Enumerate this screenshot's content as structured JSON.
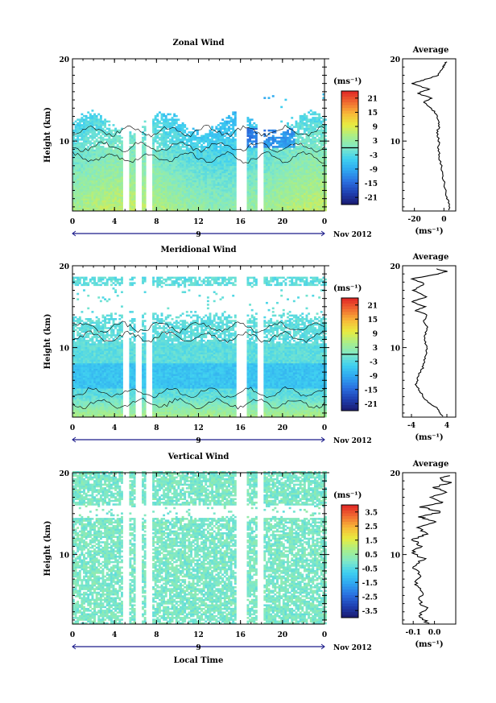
{
  "figure": {
    "date_label": "Nov 2012",
    "day_label": "9",
    "xlabel": "Local Time",
    "ylabel": "Height (km)",
    "colorbar_unit": "(ms⁻¹)",
    "average_xlabel": "(ms⁻¹)",
    "average_title": "Average"
  },
  "chart_data": [
    {
      "type": "heatmap",
      "title": "Zonal Wind",
      "xlabel": "Local Time",
      "ylabel": "Height (km)",
      "x_ticks": [
        "0",
        "4",
        "8",
        "12",
        "16",
        "20",
        "0"
      ],
      "xlim": [
        0,
        24
      ],
      "y_ticks": [
        "10",
        "20"
      ],
      "ylim": [
        1.5,
        20
      ],
      "colorbar_ticks": [
        "21",
        "15",
        "9",
        "3",
        "-3",
        "-9",
        "-15",
        "-21"
      ],
      "colorbar_range": [
        -24,
        24
      ],
      "average": {
        "title": "Average",
        "x_ticks": [
          "-20",
          "0"
        ],
        "xlim": [
          -28,
          8
        ],
        "y_ticks": [
          "10",
          "20"
        ],
        "ylim": [
          1.5,
          20
        ],
        "profile": [
          [
            4,
            1.6
          ],
          [
            3,
            2.5
          ],
          [
            1.5,
            3.5
          ],
          [
            0,
            5
          ],
          [
            -1.5,
            6.5
          ],
          [
            -3,
            8
          ],
          [
            -4,
            9
          ],
          [
            -3.5,
            10
          ],
          [
            -4.5,
            11
          ],
          [
            -3,
            12
          ],
          [
            -4,
            12.8
          ],
          [
            -6,
            13.5
          ],
          [
            -10,
            14.2
          ],
          [
            -14,
            14.8
          ],
          [
            -8,
            15.2
          ],
          [
            -18,
            15.8
          ],
          [
            -10,
            16.3
          ],
          [
            -22,
            17
          ],
          [
            -14,
            17.4
          ],
          [
            -4,
            18
          ],
          [
            -2,
            18.6
          ],
          [
            0,
            19.2
          ],
          [
            2,
            19.7
          ]
        ]
      }
    },
    {
      "type": "heatmap",
      "title": "Meridional Wind",
      "xlabel": "Local Time",
      "ylabel": "Height (km)",
      "x_ticks": [
        "0",
        "4",
        "8",
        "12",
        "16",
        "20",
        "0"
      ],
      "xlim": [
        0,
        24
      ],
      "y_ticks": [
        "10",
        "20"
      ],
      "ylim": [
        1.5,
        20
      ],
      "colorbar_ticks": [
        "21",
        "15",
        "9",
        "3",
        "-3",
        "-9",
        "-15",
        "-21"
      ],
      "colorbar_range": [
        -24,
        24
      ],
      "average": {
        "title": "Average",
        "x_ticks": [
          "-4",
          "4"
        ],
        "xlim": [
          -6,
          6
        ],
        "y_ticks": [
          "10",
          "20"
        ],
        "ylim": [
          1.5,
          20
        ],
        "profile": [
          [
            3,
            1.6
          ],
          [
            2,
            2.5
          ],
          [
            -0.5,
            3.5
          ],
          [
            -2,
            4.5
          ],
          [
            -3,
            5.5
          ],
          [
            -2.5,
            6.5
          ],
          [
            -1.5,
            7.5
          ],
          [
            -1,
            8.5
          ],
          [
            -0.5,
            9.5
          ],
          [
            -0.8,
            10.5
          ],
          [
            -1,
            11.5
          ],
          [
            -0.3,
            12.5
          ],
          [
            -1.2,
            13.3
          ],
          [
            -0.5,
            14
          ],
          [
            -3,
            14.5
          ],
          [
            -1,
            15
          ],
          [
            -4,
            15.6
          ],
          [
            -0.5,
            16.2
          ],
          [
            -3.5,
            17
          ],
          [
            -1,
            17.8
          ],
          [
            -4,
            18.4
          ],
          [
            2,
            19
          ],
          [
            4,
            19.3
          ],
          [
            1,
            19.7
          ]
        ]
      }
    },
    {
      "type": "heatmap",
      "title": "Vertical Wind",
      "xlabel": "Local Time",
      "ylabel": "Height (km)",
      "x_ticks": [
        "0",
        "4",
        "8",
        "12",
        "16",
        "20",
        "0"
      ],
      "xlim": [
        0,
        24
      ],
      "y_ticks": [
        "10",
        "20"
      ],
      "ylim": [
        1.5,
        20
      ],
      "colorbar_ticks": [
        "3.5",
        "2.5",
        "1.5",
        "0.5",
        "-0.5",
        "-1.5",
        "-2.5",
        "-3.5"
      ],
      "colorbar_range": [
        -4,
        4
      ],
      "average": {
        "title": "Average",
        "x_ticks": [
          "-0.1",
          "0.0"
        ],
        "xlim": [
          -0.15,
          0.1
        ],
        "y_ticks": [
          "10",
          "20"
        ],
        "ylim": [
          1.5,
          20
        ],
        "profile": [
          [
            -0.03,
            1.6
          ],
          [
            -0.07,
            2.5
          ],
          [
            -0.04,
            3.5
          ],
          [
            -0.08,
            4.5
          ],
          [
            -0.05,
            5.5
          ],
          [
            -0.09,
            6.5
          ],
          [
            -0.06,
            7.5
          ],
          [
            -0.1,
            8.5
          ],
          [
            -0.05,
            9.5
          ],
          [
            -0.11,
            10.2
          ],
          [
            -0.06,
            11
          ],
          [
            -0.1,
            11.8
          ],
          [
            -0.04,
            12.5
          ],
          [
            -0.08,
            13.3
          ],
          [
            0.01,
            14
          ],
          [
            -0.07,
            14.6
          ],
          [
            0.03,
            15.2
          ],
          [
            -0.06,
            15.8
          ],
          [
            0.04,
            16.4
          ],
          [
            -0.02,
            17
          ],
          [
            0.05,
            17.6
          ],
          [
            0.0,
            18.2
          ],
          [
            0.07,
            18.8
          ],
          [
            0.02,
            19.3
          ],
          [
            0.08,
            19.7
          ]
        ]
      }
    }
  ]
}
